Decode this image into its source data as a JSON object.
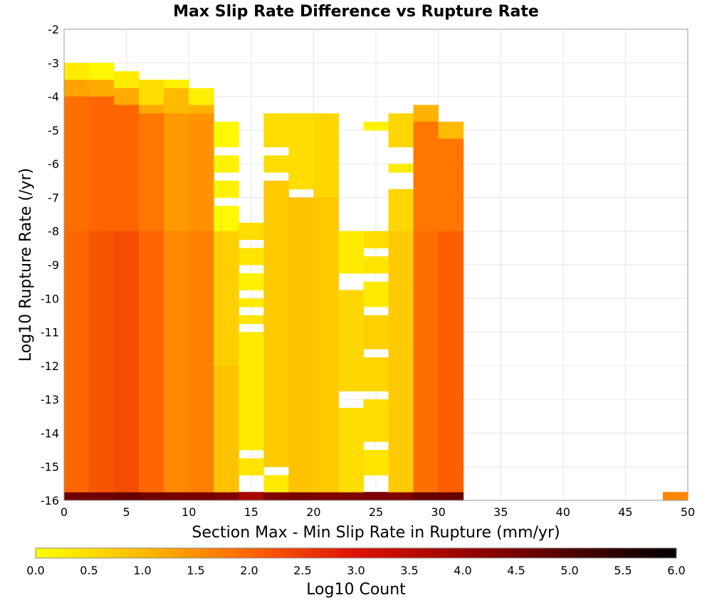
{
  "chart_data": {
    "type": "heatmap",
    "title": "Max Slip Rate Difference vs Rupture Rate",
    "xlabel": "Section Max - Min Slip Rate in Rupture (mm/yr)",
    "ylabel": "Log10 Rupture Rate (/yr)",
    "xlim": [
      0,
      50
    ],
    "ylim": [
      -16,
      -2
    ],
    "x_ticks": [
      "0",
      "5",
      "10",
      "15",
      "20",
      "25",
      "30",
      "35",
      "40",
      "45",
      "50"
    ],
    "y_ticks": [
      "-2",
      "-3",
      "-4",
      "-5",
      "-6",
      "-7",
      "-8",
      "-9",
      "-10",
      "-11",
      "-12",
      "-13",
      "-14",
      "-15",
      "-16"
    ],
    "grid": true,
    "bin_width_x": 2,
    "bin_height_y": 0.25,
    "colorbar": {
      "label": "Log10 Count",
      "range": [
        0,
        6
      ],
      "ticks": [
        "0.0",
        "0.5",
        "1.0",
        "1.5",
        "2.0",
        "2.5",
        "3.0",
        "3.5",
        "4.0",
        "4.5",
        "5.0",
        "5.5",
        "6.0"
      ],
      "stops": [
        {
          "v": 0.0,
          "color": "#ffff00"
        },
        {
          "v": 1.0,
          "color": "#ffbb00"
        },
        {
          "v": 2.0,
          "color": "#ff6600"
        },
        {
          "v": 3.0,
          "color": "#dd1100"
        },
        {
          "v": 4.5,
          "color": "#770000"
        },
        {
          "v": 6.0,
          "color": "#000000"
        }
      ]
    },
    "columns": [
      {
        "x0": 0,
        "y0": -15.75,
        "y1": -3.0,
        "bottom_value": 4.6,
        "segments": [
          {
            "from": -3.5,
            "to": -3.0,
            "value": 0.3
          },
          {
            "from": -4.0,
            "to": -3.5,
            "value": 1.3
          },
          {
            "from": -8.0,
            "to": -4.0,
            "value": 1.9
          },
          {
            "from": -15.75,
            "to": -8.0,
            "value": 2.0
          }
        ]
      },
      {
        "x0": 2,
        "y0": -15.75,
        "y1": -3.0,
        "bottom_value": 4.6,
        "segments": [
          {
            "from": -3.5,
            "to": -3.0,
            "value": 0.1
          },
          {
            "from": -4.0,
            "to": -3.5,
            "value": 1.2
          },
          {
            "from": -8.0,
            "to": -4.0,
            "value": 2.0
          },
          {
            "from": -15.75,
            "to": -8.0,
            "value": 2.2
          }
        ]
      },
      {
        "x0": 4,
        "y0": -15.75,
        "y1": -3.25,
        "bottom_value": 4.7,
        "segments": [
          {
            "from": -3.75,
            "to": -3.25,
            "value": 0.3
          },
          {
            "from": -4.25,
            "to": -3.75,
            "value": 1.2
          },
          {
            "from": -8.0,
            "to": -4.25,
            "value": 2.0
          },
          {
            "from": -15.75,
            "to": -8.0,
            "value": 2.3
          }
        ]
      },
      {
        "x0": 6,
        "y0": -15.75,
        "y1": -3.5,
        "bottom_value": 4.6,
        "segments": [
          {
            "from": -4.25,
            "to": -3.5,
            "value": 0.5
          },
          {
            "from": -4.5,
            "to": -4.25,
            "value": 1.2
          },
          {
            "from": -8.0,
            "to": -4.5,
            "value": 1.8
          },
          {
            "from": -15.75,
            "to": -8.0,
            "value": 2.0
          }
        ]
      },
      {
        "x0": 8,
        "y0": -15.75,
        "y1": -3.5,
        "bottom_value": 4.5,
        "segments": [
          {
            "from": -3.75,
            "to": -3.5,
            "value": 0.2
          },
          {
            "from": -4.5,
            "to": -3.75,
            "value": 1.0
          },
          {
            "from": -8.0,
            "to": -4.5,
            "value": 1.4
          },
          {
            "from": -15.75,
            "to": -8.0,
            "value": 1.6
          }
        ]
      },
      {
        "x0": 10,
        "y0": -15.75,
        "y1": -3.75,
        "bottom_value": 4.5,
        "segments": [
          {
            "from": -4.25,
            "to": -3.75,
            "value": 0.2
          },
          {
            "from": -4.5,
            "to": -4.25,
            "value": 1.1
          },
          {
            "from": -8.0,
            "to": -4.5,
            "value": 1.5
          },
          {
            "from": -15.75,
            "to": -8.0,
            "value": 1.7
          }
        ]
      },
      {
        "x0": 12,
        "y0": -15.75,
        "y1": -4.75,
        "bottom_value": 4.4,
        "segments": [
          {
            "from": -5.5,
            "to": -4.75,
            "value": 0.1
          },
          {
            "from": -6.25,
            "to": -5.75,
            "value": 0.2
          },
          {
            "from": -7.0,
            "to": -6.5,
            "value": 0.2
          },
          {
            "from": -8.0,
            "to": -7.25,
            "value": 0.1
          },
          {
            "from": -12.0,
            "to": -8.0,
            "value": 0.7
          },
          {
            "from": -15.75,
            "to": -12.0,
            "value": 0.9
          }
        ]
      },
      {
        "x0": 14,
        "y0": -15.75,
        "y1": -7.75,
        "bottom_value": 3.8,
        "segments": [
          {
            "from": -8.25,
            "to": -7.75,
            "value": 0.5
          },
          {
            "from": -9.0,
            "to": -8.5,
            "value": 0.4
          },
          {
            "from": -9.75,
            "to": -9.25,
            "value": 0.2
          },
          {
            "from": -10.25,
            "to": -10.0,
            "value": 0.3
          },
          {
            "from": -10.75,
            "to": -10.5,
            "value": 0.4
          },
          {
            "from": -14.5,
            "to": -11.0,
            "value": 0.3
          },
          {
            "from": -15.25,
            "to": -14.75,
            "value": 0.4
          }
        ]
      },
      {
        "x0": 16,
        "y0": -15.75,
        "y1": -4.5,
        "bottom_value": 4.4,
        "segments": [
          {
            "from": -5.5,
            "to": -4.5,
            "value": 0.5
          },
          {
            "from": -6.25,
            "to": -5.75,
            "value": 0.5
          },
          {
            "from": -15.0,
            "to": -6.5,
            "value": 0.8
          },
          {
            "from": -15.75,
            "to": -15.25,
            "value": 0.3
          }
        ]
      },
      {
        "x0": 18,
        "y0": -15.75,
        "y1": -4.5,
        "bottom_value": 4.5,
        "segments": [
          {
            "from": -6.75,
            "to": -4.5,
            "value": 0.5
          },
          {
            "from": -15.75,
            "to": -7.0,
            "value": 0.9
          }
        ]
      },
      {
        "x0": 20,
        "y0": -15.75,
        "y1": -4.5,
        "bottom_value": 4.4,
        "segments": [
          {
            "from": -7.0,
            "to": -4.5,
            "value": 0.6
          },
          {
            "from": -15.75,
            "to": -7.0,
            "value": 0.8
          }
        ]
      },
      {
        "x0": 22,
        "y0": -15.75,
        "y1": -8.0,
        "bottom_value": 4.4,
        "segments": [
          {
            "from": -9.25,
            "to": -8.0,
            "value": 0.3
          },
          {
            "from": -12.75,
            "to": -9.75,
            "value": 0.6
          },
          {
            "from": -15.75,
            "to": -13.25,
            "value": 0.5
          }
        ]
      },
      {
        "x0": 24,
        "y0": -15.75,
        "y1": -4.75,
        "bottom_value": 4.4,
        "segments": [
          {
            "from": -5.0,
            "to": -4.75,
            "value": 0.2
          },
          {
            "from": -8.5,
            "to": -8.0,
            "value": 0.5
          },
          {
            "from": -9.25,
            "to": -8.75,
            "value": 0.4
          },
          {
            "from": -10.25,
            "to": -9.5,
            "value": 0.3
          },
          {
            "from": -11.5,
            "to": -10.5,
            "value": 0.7
          },
          {
            "from": -12.75,
            "to": -11.75,
            "value": 0.6
          },
          {
            "from": -14.25,
            "to": -13.0,
            "value": 0.5
          },
          {
            "from": -15.25,
            "to": -14.5,
            "value": 0.4
          }
        ]
      },
      {
        "x0": 26,
        "y0": -15.75,
        "y1": -4.5,
        "bottom_value": 4.4,
        "segments": [
          {
            "from": -5.5,
            "to": -4.5,
            "value": 0.6
          },
          {
            "from": -6.25,
            "to": -6.0,
            "value": 0.3
          },
          {
            "from": -8.0,
            "to": -6.75,
            "value": 0.6
          },
          {
            "from": -15.75,
            "to": -8.0,
            "value": 0.8
          }
        ]
      },
      {
        "x0": 28,
        "y0": -15.75,
        "y1": -4.25,
        "bottom_value": 4.7,
        "segments": [
          {
            "from": -4.75,
            "to": -4.25,
            "value": 1.1
          },
          {
            "from": -8.0,
            "to": -4.75,
            "value": 1.8
          },
          {
            "from": -15.75,
            "to": -8.0,
            "value": 1.9
          }
        ]
      },
      {
        "x0": 30,
        "y0": -15.75,
        "y1": -4.75,
        "bottom_value": 4.7,
        "segments": [
          {
            "from": -5.25,
            "to": -4.75,
            "value": 1.0
          },
          {
            "from": -8.0,
            "to": -5.25,
            "value": 1.8
          },
          {
            "from": -15.75,
            "to": -8.0,
            "value": 2.1
          }
        ]
      },
      {
        "x0": 48,
        "y0": -16.0,
        "y1": -15.75,
        "bottom_value": 1.6,
        "segments": []
      }
    ]
  }
}
